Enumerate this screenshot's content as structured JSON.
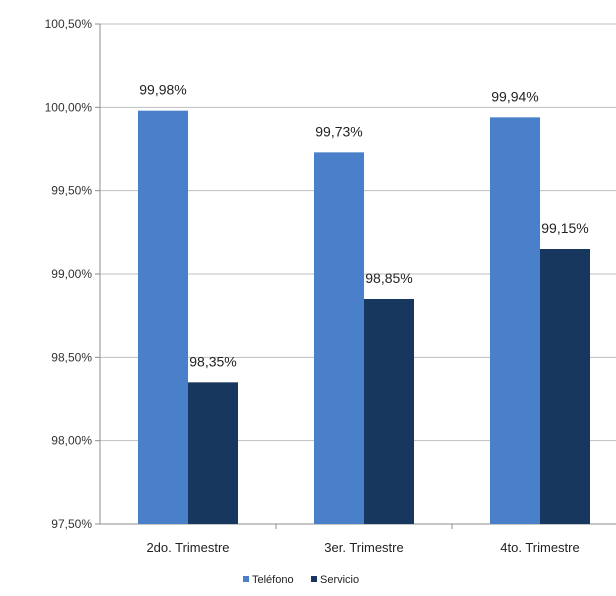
{
  "chart_data": {
    "type": "bar",
    "title": "",
    "xlabel": "",
    "ylabel": "",
    "categories": [
      "2do. Trimestre",
      "3er. Trimestre",
      "4to. Trimestre"
    ],
    "series": [
      {
        "name": "Teléfono",
        "values": [
          99.98,
          99.73,
          99.94
        ],
        "labels": [
          "99,98%",
          "99,73%",
          "99,94%"
        ]
      },
      {
        "name": "Servicio",
        "values": [
          98.35,
          98.85,
          99.15
        ],
        "labels": [
          "98,35%",
          "98,85%",
          "99,15%"
        ]
      }
    ],
    "ylim": [
      97.5,
      100.5
    ],
    "yticks": [
      97.5,
      98.0,
      98.5,
      99.0,
      99.5,
      100.0,
      100.5
    ],
    "ytick_labels": [
      "97,50%",
      "98,00%",
      "98,50%",
      "99,00%",
      "99,50%",
      "100,00%",
      "100,50%"
    ],
    "grid": true,
    "legend_position": "bottom",
    "colors": {
      "Teléfono": "#4a7fc9",
      "Servicio": "#17375e"
    }
  }
}
